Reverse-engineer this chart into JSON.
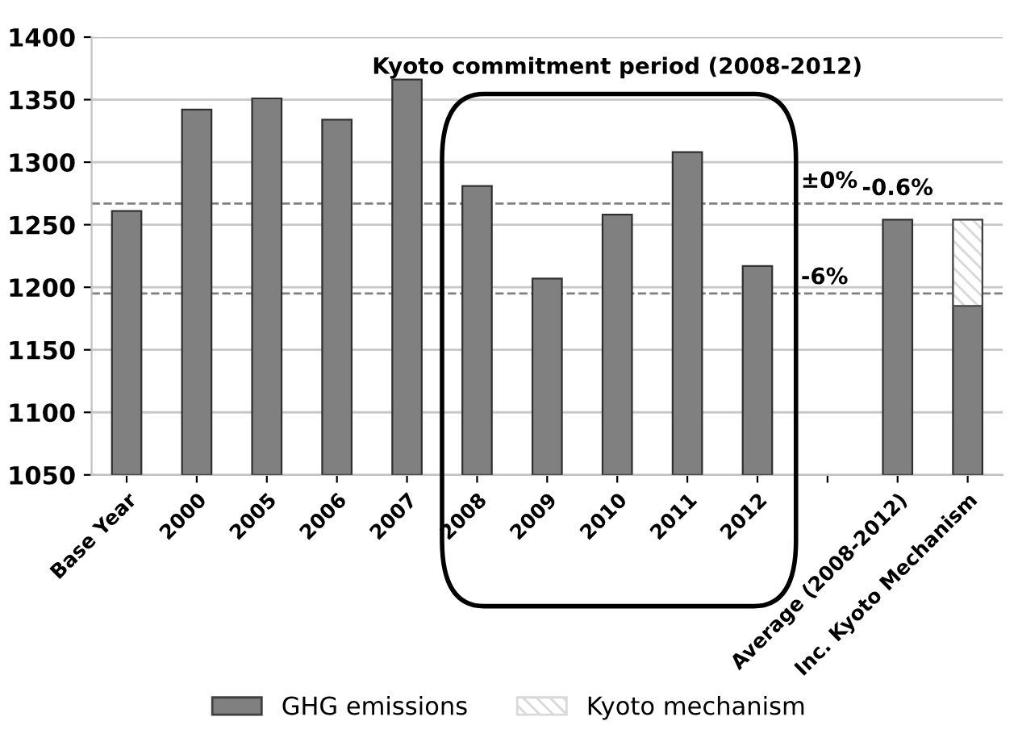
{
  "chart_data": {
    "type": "bar",
    "categories": [
      "Base Year",
      "2000",
      "2005",
      "2006",
      "2007",
      "2008",
      "2009",
      "2010",
      "2011",
      "2012",
      null,
      "Average (2008-2012)",
      "Inc. Kyoto Mechanism"
    ],
    "series": [
      {
        "name": "GHG emissions",
        "color": "#808080",
        "values": [
          1261,
          1342,
          1351,
          1334,
          1366,
          1281,
          1207,
          1258,
          1308,
          1217,
          null,
          1254,
          1185
        ]
      },
      {
        "name": "Kyoto mechanism",
        "color": "#d9d9d9",
        "values": [
          null,
          null,
          null,
          null,
          null,
          null,
          null,
          null,
          null,
          null,
          null,
          null,
          69
        ],
        "base": [
          null,
          null,
          null,
          null,
          null,
          null,
          null,
          null,
          null,
          null,
          null,
          null,
          1185
        ]
      }
    ],
    "ylim": [
      1050,
      1400
    ],
    "yticks": [
      1050,
      1100,
      1150,
      1200,
      1250,
      1300,
      1350,
      1400
    ],
    "grid": "y",
    "legend": "bottom",
    "ref_lines": [
      {
        "axis": "y",
        "value": 1267,
        "line_style": "dashed",
        "color": "#808080"
      },
      {
        "axis": "y",
        "value": 1195,
        "line_style": "dashed",
        "color": "#808080"
      }
    ],
    "annotations": [
      "Kyoto commitment period (2008-2012)",
      "±0%",
      "-6%",
      {
        "text": "-0.6%",
        "x": "Average (2008-2012)",
        "y": 1270
      }
    ]
  }
}
